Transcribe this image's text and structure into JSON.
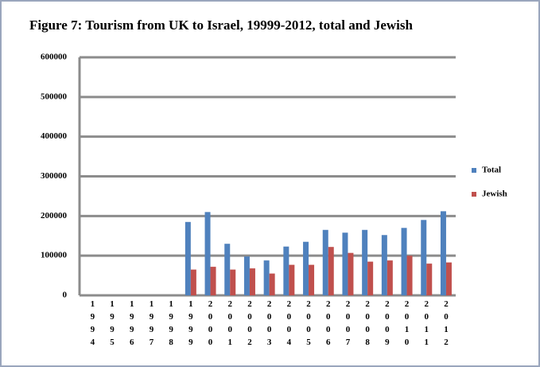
{
  "chart_data": {
    "type": "bar",
    "title": "Figure 7: Tourism from UK to Israel, 19999-2012, total and Jewish",
    "categories": [
      "1994",
      "1995",
      "1996",
      "1997",
      "1998",
      "1999",
      "2000",
      "2001",
      "2002",
      "2003",
      "2004",
      "2005",
      "2006",
      "2007",
      "2008",
      "2009",
      "2010",
      "2011",
      "2012"
    ],
    "series": [
      {
        "name": "Total",
        "color": "#4f81bd",
        "values": [
          null,
          null,
          null,
          null,
          null,
          185000,
          210000,
          130000,
          98000,
          88000,
          123000,
          135000,
          165000,
          158000,
          165000,
          152000,
          170000,
          190000,
          212000
        ]
      },
      {
        "name": "Jewish",
        "color": "#c0504d",
        "values": [
          null,
          null,
          null,
          null,
          null,
          65000,
          72000,
          65000,
          68000,
          55000,
          77000,
          77000,
          122000,
          107000,
          85000,
          88000,
          100000,
          80000,
          83000
        ]
      }
    ],
    "ylim": [
      0,
      600000
    ],
    "yticks": [
      0,
      100000,
      200000,
      300000,
      400000,
      500000,
      600000
    ],
    "grid": true,
    "legend": "right"
  }
}
